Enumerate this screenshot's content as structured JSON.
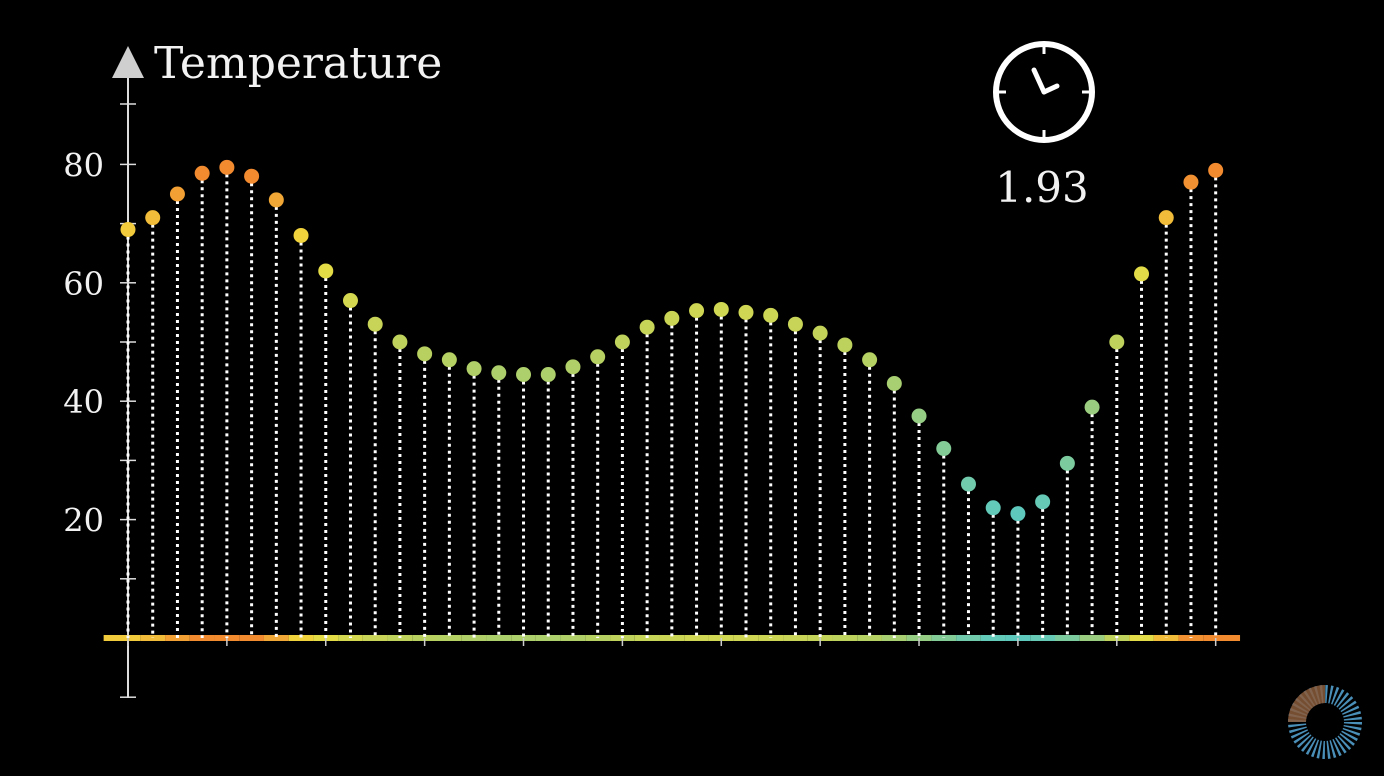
{
  "chart_data": {
    "type": "scatter",
    "style": "stem",
    "ylabel": "Temperature",
    "yticks": [
      20,
      40,
      60,
      80
    ],
    "ylim": [
      -10,
      90
    ],
    "grid": false,
    "legend": "none",
    "values": [
      69,
      71,
      75,
      78.5,
      79.5,
      78,
      74,
      68,
      62,
      57,
      53,
      50,
      48,
      47,
      45.5,
      44.8,
      44.5,
      44.5,
      45.8,
      47.5,
      50,
      52.5,
      54,
      55.3,
      55.5,
      55,
      54.5,
      53,
      51.5,
      49.5,
      47,
      43,
      37.5,
      32,
      26,
      22,
      21,
      23,
      29.5,
      39,
      50,
      61.5,
      71,
      77,
      79
    ],
    "timer": "1.93"
  },
  "colors": {
    "cold": "#5cc8c0",
    "mid": "#b8d060",
    "warm": "#f0e040",
    "hot": "#f28a30",
    "axis": "#dddddd"
  },
  "icons": {
    "clock": "clock-icon",
    "progress": "loading-ring-icon"
  }
}
